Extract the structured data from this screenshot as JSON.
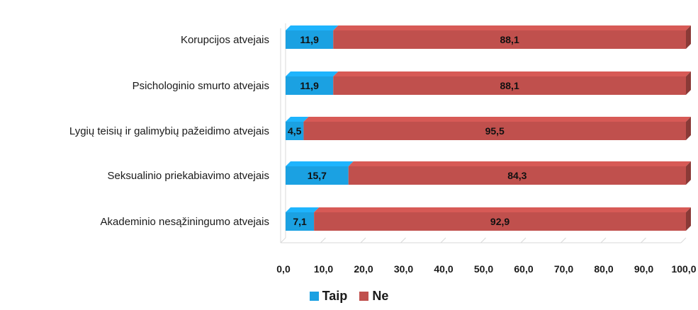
{
  "chart_data": {
    "type": "bar",
    "orientation": "horizontal",
    "stacked": true,
    "categories": [
      "Korupcijos atvejais",
      "Psichologinio smurto atvejais",
      "Lygių teisių ir galimybių pažeidimo atvejais",
      "Seksualinio priekabiavimo atvejais",
      "Akademinio nesąžiningumo atvejais"
    ],
    "series": [
      {
        "name": "Taip",
        "color": "#1ba1e2",
        "values": [
          11.9,
          11.9,
          4.5,
          15.7,
          7.1
        ],
        "labels": [
          "11,9",
          "11,9",
          "4,5",
          "15,7",
          "7,1"
        ]
      },
      {
        "name": "Ne",
        "color": "#c0504d",
        "values": [
          88.1,
          88.1,
          95.5,
          84.3,
          92.9
        ],
        "labels": [
          "88,1",
          "88,1",
          "95,5",
          "84,3",
          "92,9"
        ]
      }
    ],
    "xlim": [
      0,
      100
    ],
    "xticks": [
      "0,0",
      "10,0",
      "20,0",
      "30,0",
      "40,0",
      "50,0",
      "60,0",
      "70,0",
      "80,0",
      "90,0",
      "100,0"
    ],
    "grid": false,
    "legend_position": "bottom"
  }
}
